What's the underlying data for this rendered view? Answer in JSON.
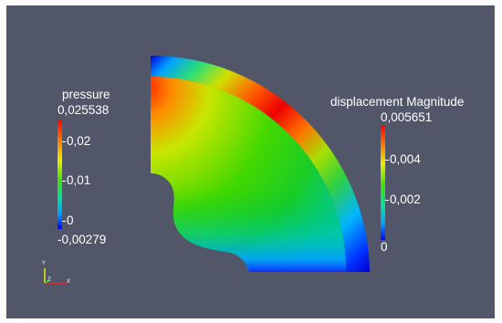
{
  "viewport": {
    "background": "#525669"
  },
  "pressure_legend": {
    "title": "pressure",
    "max": "0,025538",
    "min": "-0,00279",
    "ticks": [
      "0,02",
      "0,01",
      "0"
    ],
    "colormap": [
      "#ff0000",
      "#ff7f00",
      "#ffff00",
      "#7fff00",
      "#00ff00",
      "#00ffa0",
      "#00b4ff",
      "#0000ff"
    ]
  },
  "displacement_legend": {
    "title": "displacement Magnitude",
    "max": "0,005651",
    "ticks": [
      "0,004",
      "0,002",
      "0"
    ],
    "colormap": [
      "#ff0000",
      "#ff7f00",
      "#ffff00",
      "#7fff00",
      "#00ff00",
      "#00ffa0",
      "#00b4ff",
      "#0000ff"
    ]
  },
  "axes": {
    "y": "Y",
    "z": "Z",
    "x": "X"
  }
}
